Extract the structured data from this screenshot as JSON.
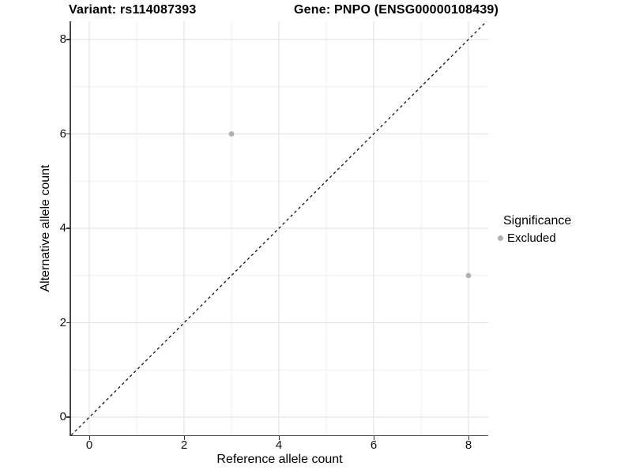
{
  "chart_data": {
    "type": "scatter",
    "title_left": "Variant: rs114087393",
    "title_right": "Gene: PNPO (ENSG00000108439)",
    "xlabel": "Reference allele count",
    "ylabel": "Alternative allele count",
    "xlim": [
      -0.4,
      8.4
    ],
    "ylim": [
      -0.4,
      8.4
    ],
    "x_ticks": [
      0,
      2,
      4,
      6,
      8
    ],
    "y_ticks": [
      0,
      2,
      4,
      6,
      8
    ],
    "x_tick_labels": [
      "0",
      "2",
      "4",
      "6",
      "8"
    ],
    "y_tick_labels": [
      "0",
      "2",
      "4",
      "6",
      "8"
    ],
    "major_gridlines": [
      0,
      2,
      4,
      6,
      8
    ],
    "minor_gridlines": [
      1,
      3,
      5,
      7
    ],
    "grid": true,
    "identity_line": {
      "equation": "y = x",
      "style": "dashed",
      "color": "#111111"
    },
    "series": [
      {
        "name": "Excluded",
        "color": "#b1b1b1",
        "points": [
          {
            "x": 3,
            "y": 6
          },
          {
            "x": 8,
            "y": 3
          }
        ]
      }
    ],
    "legend": {
      "title": "Significance",
      "position": "right",
      "items": [
        {
          "label": "Excluded",
          "color": "#b1b1b1"
        }
      ]
    },
    "colors": {
      "axis_line": "#474747",
      "tick": "#333333",
      "major_grid": "#e4e4e4",
      "minor_grid": "#efefef",
      "point": "#b1b1b1",
      "background": "#ffffff"
    }
  }
}
